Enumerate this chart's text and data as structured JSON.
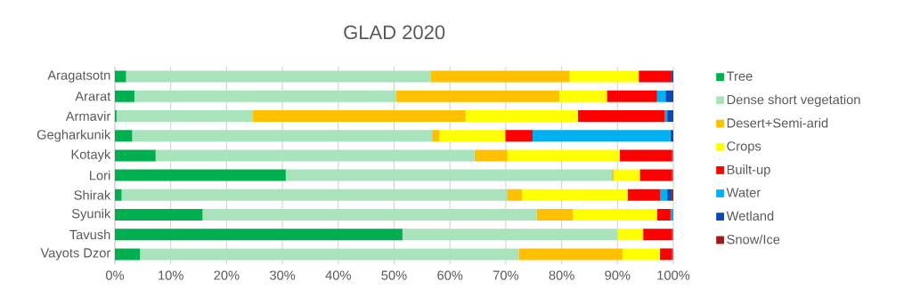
{
  "chart_data": {
    "type": "bar",
    "orientation": "horizontal",
    "stacked": true,
    "title": "GLAD 2020",
    "categories": [
      "Aragatsotn",
      "Ararat",
      "Armavir",
      "Gegharkunik",
      "Kotayk",
      "Lori",
      "Shirak",
      "Syunik",
      "Tavush",
      "Vayots Dzor"
    ],
    "series": [
      {
        "name": "Tree",
        "color": "#00b050",
        "values": [
          2.0,
          3.5,
          0.3,
          3.1,
          7.3,
          30.6,
          1.2,
          15.7,
          51.5,
          4.5
        ]
      },
      {
        "name": "Dense short vegetation",
        "color": "#a9e3bb",
        "values": [
          54.6,
          46.8,
          24.4,
          53.7,
          57.1,
          58.4,
          69.0,
          59.8,
          38.5,
          67.8
        ]
      },
      {
        "name": "Desert+Semi-arid",
        "color": "#ffc000",
        "values": [
          24.8,
          29.3,
          38.1,
          1.3,
          5.9,
          0.3,
          2.7,
          6.5,
          0,
          18.6
        ]
      },
      {
        "name": "Crops",
        "color": "#ffff00",
        "values": [
          12.4,
          8.5,
          20.1,
          11.8,
          20.1,
          4.7,
          18.9,
          15.1,
          4.6,
          6.7
        ]
      },
      {
        "name": "Built-up",
        "color": "#ff0000",
        "values": [
          5.9,
          9.0,
          15.6,
          4.9,
          9.4,
          5.8,
          5.9,
          2.4,
          5.2,
          2.2
        ]
      },
      {
        "name": "Water",
        "color": "#00b0f0",
        "values": [
          0,
          1.5,
          0.4,
          24.7,
          0.2,
          0.2,
          1.2,
          0.5,
          0.2,
          0.2
        ]
      },
      {
        "name": "Wetland",
        "color": "#0b48b6",
        "values": [
          0.3,
          1.4,
          1.1,
          0.5,
          0,
          0,
          0.8,
          0,
          0,
          0
        ]
      },
      {
        "name": "Snow/Ice",
        "color": "#9c1c1c",
        "values": [
          0,
          0,
          0,
          0,
          0,
          0,
          0.3,
          0,
          0,
          0
        ]
      }
    ],
    "xlim": [
      0,
      100
    ],
    "xticks": [
      {
        "value": 0,
        "label": "0%"
      },
      {
        "value": 10,
        "label": "10%"
      },
      {
        "value": 20,
        "label": "20%"
      },
      {
        "value": 30,
        "label": "30%"
      },
      {
        "value": 40,
        "label": "40%"
      },
      {
        "value": 50,
        "label": "50%"
      },
      {
        "value": 60,
        "label": "60%"
      },
      {
        "value": 70,
        "label": "70%"
      },
      {
        "value": 80,
        "label": "80%"
      },
      {
        "value": 90,
        "label": "90%"
      },
      {
        "value": 100,
        "label": "100%"
      }
    ],
    "grid": "x",
    "legend": "right"
  }
}
